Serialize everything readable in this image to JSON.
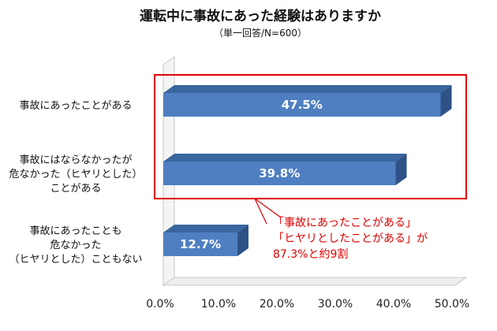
{
  "chart_data": {
    "type": "bar",
    "orientation": "horizontal",
    "title": "運転中に事故にあった経験はありますか",
    "subtitle": "（単一回答/N=600）",
    "categories": [
      [
        "事故にあったことがある"
      ],
      [
        "事故にはならなかったが",
        "危なかった（ヒヤリとした）",
        "ことがある"
      ],
      [
        "事故にあったことも",
        "危なかった",
        "（ヒヤリとした）こともない"
      ]
    ],
    "values": [
      47.5,
      39.8,
      12.7
    ],
    "value_labels": [
      "47.5%",
      "39.8%",
      "12.7%"
    ],
    "xlim": [
      0,
      50
    ],
    "xticks": [
      "0.0%",
      "10.0%",
      "20.0%",
      "30.0%",
      "40.0%",
      "50.0%"
    ],
    "grid": false,
    "bar_color": "#4f7fc1",
    "bar_side_color": "#2e5288",
    "bar_top_color": "#3a669e",
    "annotation": {
      "lines": [
        "「事故にあったことがある」",
        "「ヒヤリとしたことがある」が",
        "87.3%と約9割"
      ],
      "color": "#e00000"
    }
  }
}
